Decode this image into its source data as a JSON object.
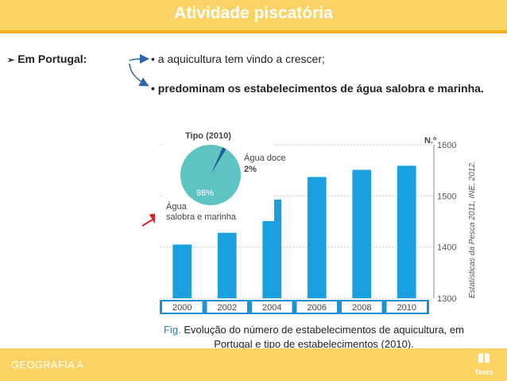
{
  "header": {
    "title": "Atividade piscatória"
  },
  "content": {
    "label": "Em Portugal:",
    "items": [
      "• a aquicultura tem vindo a crescer;",
      "• predominam os estabelecimentos de água salobra e marinha."
    ]
  },
  "chart_data": [
    {
      "type": "bar",
      "categories": [
        "2000",
        "2002",
        "2004",
        "2006",
        "2008",
        "2010"
      ],
      "values": [
        1405,
        1428,
        1493,
        1537,
        1551,
        1559
      ],
      "ylim": [
        1300,
        1600
      ],
      "yticks": [
        "1300",
        "1400",
        "1500",
        "1600"
      ],
      "ylabel": "N.º",
      "source": "Estatísticas da Pesca 2011, INE, 2012.",
      "color": "#1aa0e0"
    },
    {
      "type": "pie",
      "title": "Tipo (2010)",
      "slices": [
        {
          "label": "Água salobra e marinha",
          "value": 98,
          "value_label": "98%",
          "color": "#5ec4c1"
        },
        {
          "label": "Água doce",
          "value": 2,
          "value_label": "2%",
          "color": "#1d5e9c"
        }
      ]
    }
  ],
  "caption": {
    "fig": "Fig.",
    "text": "Evolução do número de estabelecimentos de aquicultura, em Portugal e tipo de estabelecimentos (2010)."
  },
  "footer": {
    "subject": "GEOGRAFIA A",
    "logo_text": "Texto",
    "logo_icon": "book-icon"
  },
  "colors": {
    "accent": "#fbd365",
    "accent_dark": "#efb21d",
    "fig_blue": "#2e7dbf",
    "callout_arrow": "#d9232a"
  }
}
